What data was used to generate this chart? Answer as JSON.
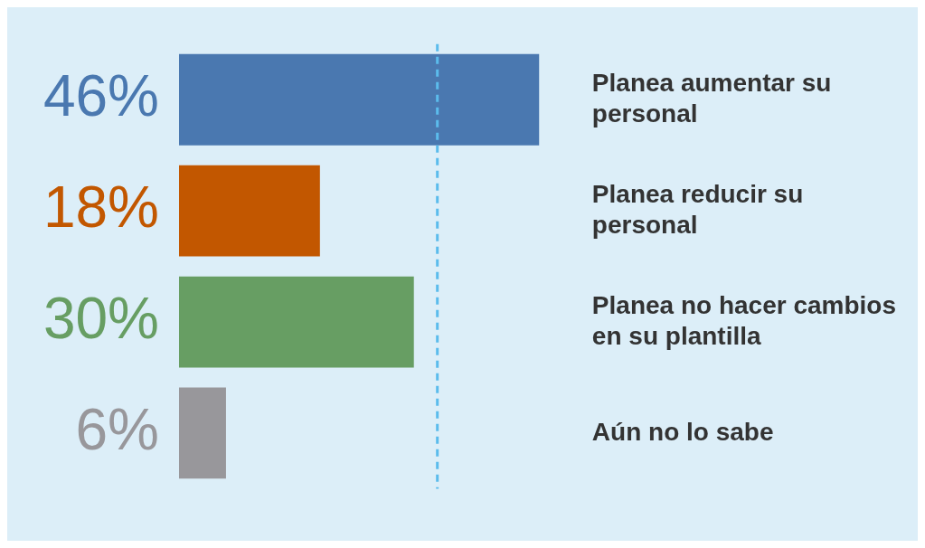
{
  "chart_data": {
    "type": "bar",
    "orientation": "horizontal",
    "categories": [
      "Planea aumentar su personal",
      "Planea reducir su personal",
      "Planea no hacer cambios en su plantilla",
      "Aún no lo sabe"
    ],
    "values": [
      46,
      18,
      30,
      6
    ],
    "colors": [
      "#4a78b0",
      "#c25700",
      "#679e63",
      "#98979b"
    ],
    "value_labels": [
      "46%",
      "18%",
      "30%",
      "6%"
    ],
    "ref_lines": [
      {
        "axis": "x",
        "value": 33,
        "color": "#5bbcec",
        "line_style": "dashed"
      }
    ],
    "grid": false,
    "legend": false,
    "tick_labels": "y"
  }
}
